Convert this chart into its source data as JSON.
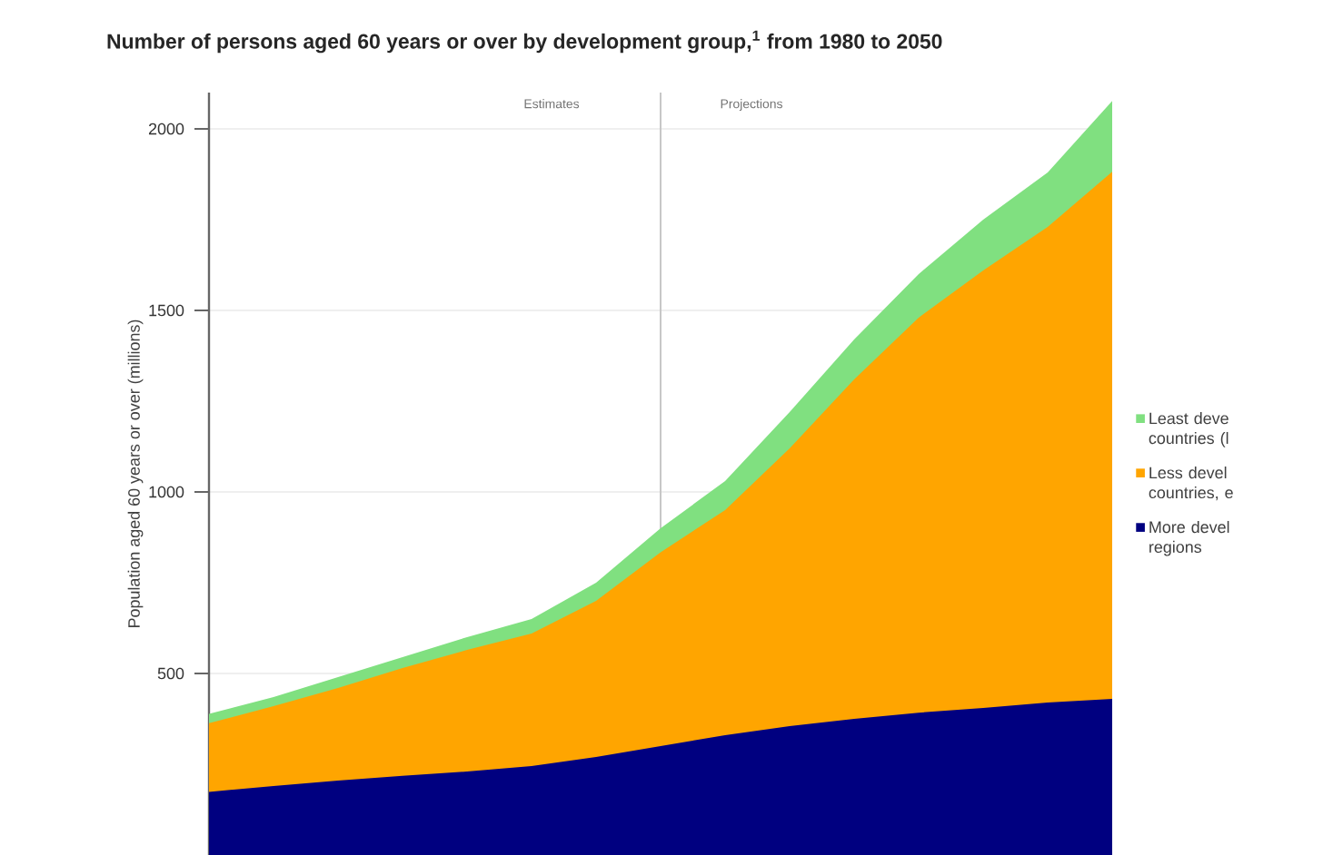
{
  "chart_data": {
    "type": "area",
    "stacked": true,
    "title": "Number of persons aged 60 years or over by development group,$^{1}$ from 1980 to 2050",
    "ylabel": "Population aged 60 years or over (millions)",
    "categories": [
      null,
      null,
      null,
      null,
      null,
      null,
      null,
      null,
      null,
      null,
      null,
      null,
      null,
      null,
      null
    ],
    "series": [
      {
        "name": "More devel regions",
        "color": "#000080",
        "values": [
          174,
          190,
          205,
          218,
          230,
          245,
          270,
          300,
          330,
          355,
          375,
          392,
          405,
          420,
          430
        ]
      },
      {
        "name": "Less devel countries, e",
        "color": "#ffa500",
        "values": [
          189,
          220,
          255,
          297,
          335,
          365,
          430,
          534,
          620,
          765,
          935,
          1088,
          1205,
          1310,
          1452
        ]
      },
      {
        "name": "Least deve countries (l",
        "color": "#80e080",
        "values": [
          26,
          25,
          30,
          30,
          35,
          40,
          50,
          66,
          80,
          100,
          110,
          120,
          140,
          150,
          195
        ]
      }
    ],
    "ylim": [
      0,
      2100
    ],
    "yticks": [
      500,
      1000,
      1500,
      2000
    ],
    "tick_labels": "y",
    "grid": "y",
    "legend": "right",
    "annotations": [
      "Estimates",
      "Projections"
    ]
  }
}
